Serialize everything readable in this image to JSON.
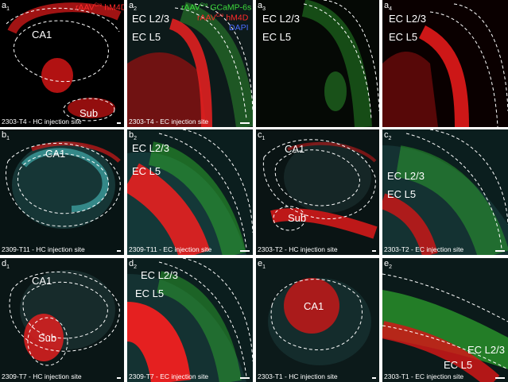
{
  "panels": {
    "a1": {
      "label": "a",
      "sub": "1",
      "caption": "2303-T4 - HC injection site",
      "regions": [
        "CA1",
        "Sub"
      ]
    },
    "a2": {
      "label": "a",
      "sub": "2",
      "caption": "2303-T4 - EC injection site",
      "regions": [
        "EC L2/3",
        "EC L5"
      ]
    },
    "a3": {
      "label": "a",
      "sub": "3",
      "regions": [
        "EC L2/3",
        "EC L5"
      ]
    },
    "a4": {
      "label": "a",
      "sub": "4",
      "regions": [
        "EC L2/3",
        "EC L5"
      ]
    },
    "b1": {
      "label": "b",
      "sub": "1",
      "caption": "2309-T11 - HC injection site",
      "regions": [
        "CA1"
      ]
    },
    "b2": {
      "label": "b",
      "sub": "2",
      "caption": "2309-T11 - EC injection site",
      "regions": [
        "EC L2/3",
        "EC L5"
      ]
    },
    "c1": {
      "label": "c",
      "sub": "1",
      "caption": "2303-T2 - HC injection site",
      "regions": [
        "CA1",
        "Sub"
      ]
    },
    "c2": {
      "label": "c",
      "sub": "2",
      "caption": "2303-T2 - EC injection site",
      "regions": [
        "EC L2/3",
        "EC L5"
      ]
    },
    "d1": {
      "label": "d",
      "sub": "1",
      "caption": "2309-T7 - HC injection site",
      "regions": [
        "CA1",
        "Sub"
      ]
    },
    "d2": {
      "label": "d",
      "sub": "2",
      "caption": "2309-T7 - EC injection site",
      "regions": [
        "EC L2/3",
        "EC L5"
      ]
    },
    "e1": {
      "label": "e",
      "sub": "1",
      "caption": "2303-T1 - HC injection site",
      "regions": [
        "CA1"
      ]
    },
    "e2": {
      "label": "e",
      "sub": "2",
      "caption": "2303-T1 - EC injection site",
      "regions": [
        "EC L2/3",
        "EC L5"
      ]
    }
  },
  "legend_a1": {
    "pre": "rAAV",
    "sup": "Cre",
    "post": " hM4D"
  },
  "legend_a2": {
    "line1": {
      "pre": "rAAV",
      "sup": "Cre",
      "post": " GCaMP-6s"
    },
    "line2": {
      "pre": "rAAV",
      "sup": "Cre",
      "post": " hM4D"
    },
    "line3": "DAPI"
  },
  "colors": {
    "red": "#ff2a2a",
    "green": "#3ddc3d",
    "cyan": "#3fa6a6",
    "blue": "#4a6cff",
    "label": "#ffffff"
  }
}
